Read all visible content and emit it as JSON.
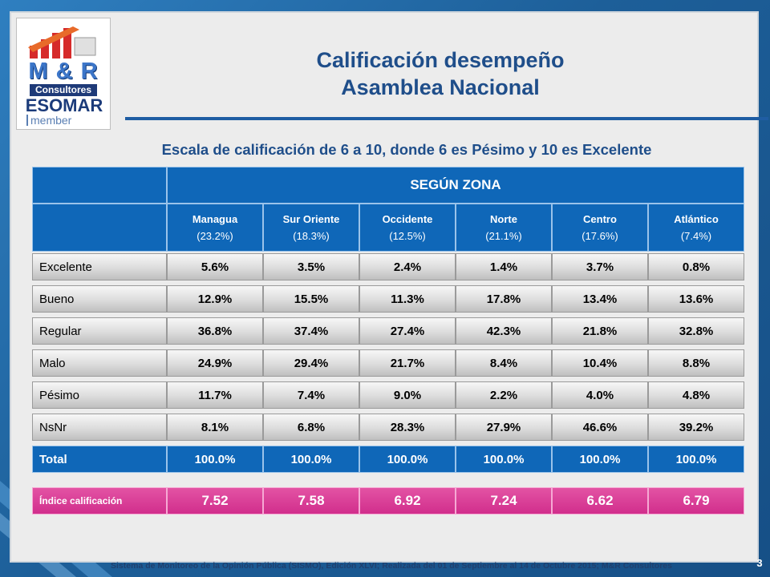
{
  "logo": {
    "brand": "M & R",
    "company": "Consultores",
    "org": "ESOMAR",
    "member": "member"
  },
  "title": {
    "line1": "Calificación desempeño",
    "line2": "Asamblea Nacional"
  },
  "subtitle": "Escala de calificación de 6 a 10, donde 6 es Pésimo y 10 es Excelente",
  "table": {
    "group_header": "SEGÚN ZONA",
    "columns": [
      {
        "name": "Managua",
        "share": "(23.2%)"
      },
      {
        "name": "Sur Oriente",
        "share": "(18.3%)"
      },
      {
        "name": "Occidente",
        "share": "(12.5%)"
      },
      {
        "name": "Norte",
        "share": "(21.1%)"
      },
      {
        "name": "Centro",
        "share": "(17.6%)"
      },
      {
        "name": "Atlántico",
        "share": "(7.4%)"
      }
    ],
    "rows": [
      {
        "label": "Excelente",
        "values": [
          "5.6%",
          "3.5%",
          "2.4%",
          "1.4%",
          "3.7%",
          "0.8%"
        ]
      },
      {
        "label": "Bueno",
        "values": [
          "12.9%",
          "15.5%",
          "11.3%",
          "17.8%",
          "13.4%",
          "13.6%"
        ]
      },
      {
        "label": "Regular",
        "values": [
          "36.8%",
          "37.4%",
          "27.4%",
          "42.3%",
          "21.8%",
          "32.8%"
        ]
      },
      {
        "label": "Malo",
        "values": [
          "24.9%",
          "29.4%",
          "21.7%",
          "8.4%",
          "10.4%",
          "8.8%"
        ]
      },
      {
        "label": "Pésimo",
        "values": [
          "11.7%",
          "7.4%",
          "9.0%",
          "2.2%",
          "4.0%",
          "4.8%"
        ]
      },
      {
        "label": "NsNr",
        "values": [
          "8.1%",
          "6.8%",
          "28.3%",
          "27.9%",
          "46.6%",
          "39.2%"
        ]
      }
    ],
    "total": {
      "label": "Total",
      "values": [
        "100.0%",
        "100.0%",
        "100.0%",
        "100.0%",
        "100.0%",
        "100.0%"
      ]
    },
    "index": {
      "label": "Índice calificación",
      "values": [
        "7.52",
        "7.58",
        "6.92",
        "7.24",
        "6.62",
        "6.79"
      ]
    }
  },
  "footer": "Sistema de Monitoreo de la Opinión Pública (SISMO), Edición XLVI; Realizada del 01 de Septiembre al 14 de Octubre 2015; M&R Consultores",
  "page_number": "3",
  "colors": {
    "header_blue": "#0f67b8",
    "index_pink": "#d12e8c",
    "title_blue": "#1f4e8a"
  }
}
